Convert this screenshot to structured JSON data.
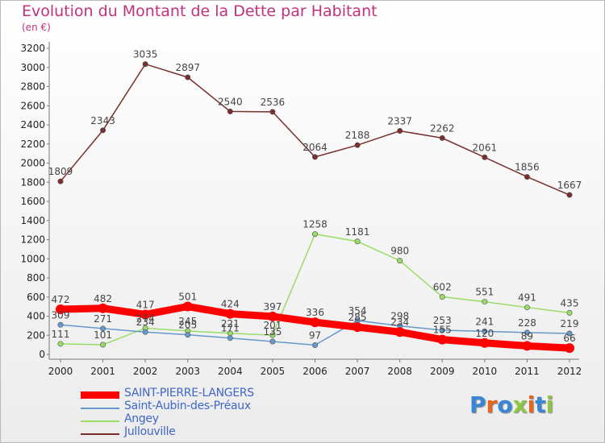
{
  "title": "Evolution du Montant de la Dette par Habitant",
  "subtitle": "(en €)",
  "logo": {
    "text": "Proxiti",
    "colors": [
      "#3a86d6",
      "#e8651d",
      "#3a86d6",
      "#8dc63f",
      "#e8651d",
      "#3a86d6",
      "#8dc63f"
    ]
  },
  "chart_data": {
    "type": "line",
    "title": "Evolution du Montant de la Dette par Habitant",
    "subtitle": "(en €)",
    "x": [
      "2000",
      "2001",
      "2002",
      "2003",
      "2004",
      "2005",
      "2006",
      "2007",
      "2008",
      "2009",
      "2010",
      "2011",
      "2012"
    ],
    "y_ticks": [
      0,
      200,
      400,
      600,
      800,
      1000,
      1200,
      1400,
      1600,
      1800,
      2000,
      2200,
      2400,
      2600,
      2800,
      3000,
      3200
    ],
    "ylim": [
      0,
      3200
    ],
    "grid": false,
    "legend": "bottom-left",
    "series": [
      {
        "name": "SAINT-PIERRE-LANGERS",
        "color": "#ff0000",
        "emphasis": true,
        "values": [
          472,
          482,
          417,
          501,
          424,
          397,
          336,
          285,
          234,
          155,
          120,
          89,
          66
        ],
        "labels": [
          "472",
          "482",
          "417",
          "501",
          "424",
          "397",
          "336",
          "285",
          "234",
          "155",
          "120",
          "89",
          "66"
        ]
      },
      {
        "name": "Saint-Aubin-des-Préaux",
        "color": "#6699cc",
        "values": [
          309,
          271,
          234,
          205,
          171,
          135,
          97,
          354,
          298,
          253,
          241,
          228,
          219
        ],
        "labels": [
          "309",
          "271",
          "234",
          "205",
          "171",
          "135",
          "97",
          "354",
          "298",
          "253",
          "241",
          "228",
          "219"
        ]
      },
      {
        "name": "Angey",
        "color": "#99dd66",
        "values": [
          111,
          101,
          274,
          245,
          221,
          201,
          1258,
          1181,
          980,
          602,
          551,
          491,
          435
        ],
        "labels": [
          "111",
          "101",
          "274",
          "245",
          "221",
          "201",
          "1258",
          "1181",
          "980",
          "602",
          "551",
          "491",
          "435"
        ]
      },
      {
        "name": "Jullouville",
        "color": "#7a2e2e",
        "values": [
          1809,
          2343,
          3035,
          2897,
          2540,
          2536,
          2064,
          2188,
          2337,
          2262,
          2061,
          1856,
          1667
        ],
        "labels": [
          "1809",
          "2343",
          "3035",
          "2897",
          "2540",
          "2536",
          "2064",
          "2188",
          "2337",
          "2262",
          "2061",
          "1856",
          "1667"
        ]
      }
    ]
  }
}
